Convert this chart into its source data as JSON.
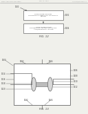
{
  "bg_color": "#f0f0eb",
  "fig12_label": "FIG. 12",
  "fig13_label": "FIG. 13",
  "box1_text": "CONFIGURE SECOND\nCOMMUNICATIONS LINK TO DIGITAL\nDEVICE",
  "box2_text": "CONFIGURE STAGE\nCOMPRISING AN ANALOG STAGE\nAND/OR DIGITAL STAGE",
  "line_color": "#666666",
  "box_color": "#ffffff",
  "text_color": "#444444",
  "header_color": "#999999"
}
